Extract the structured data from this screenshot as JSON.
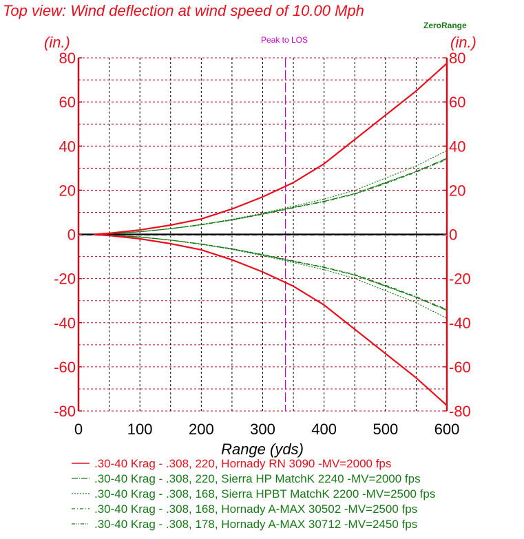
{
  "chart_data": {
    "type": "line",
    "title": "Top view: Wind deflection at wind speed of 10.00 Mph",
    "xlabel": "Range (yds)",
    "ylabel_left": "(in.)",
    "ylabel_right": "(in.)",
    "xlim": [
      0,
      600
    ],
    "ylim": [
      -80,
      80
    ],
    "x_ticks": [
      0,
      100,
      200,
      300,
      400,
      500,
      600
    ],
    "x_tick_labels": [
      "0",
      "100",
      "200",
      "300",
      "400",
      "500",
      "600"
    ],
    "y_ticks": [
      80,
      60,
      40,
      20,
      0,
      -20,
      -40,
      -60,
      -80
    ],
    "y_tick_labels": [
      "80",
      "60",
      "40",
      "20",
      "0",
      "-20",
      "-40",
      "-60",
      "-80"
    ],
    "x_grid_step": 50,
    "y_grid_step": 10,
    "grid": true,
    "annotations": {
      "peak_to_los_label": "Peak to LOS",
      "peak_to_los_x": 337,
      "zero_range_label": "ZeroRange"
    },
    "legend_position": "bottom",
    "x": [
      25,
      50,
      100,
      150,
      200,
      250,
      300,
      350,
      400,
      450,
      500,
      550,
      600
    ],
    "series": [
      {
        "name": ".30-40 Krag - .308, 220, Hornady RN 3090 -MV=2000 fps",
        "color": "#e8101e",
        "dash": "solid",
        "mirrored": true,
        "values": [
          0,
          0.5,
          2,
          4.2,
          7,
          11.5,
          17,
          23.5,
          32,
          43,
          54,
          65,
          77.5
        ]
      },
      {
        "name": ".30-40 Krag - .308, 220, Sierra HP MatchK 2240 -MV=2000 fps",
        "color": "#1a7a1a",
        "dash": "long-dash-dot",
        "mirrored": true,
        "values": [
          0,
          0.3,
          1.2,
          2.6,
          4.4,
          6.6,
          9.3,
          12.3,
          15,
          18.5,
          23.5,
          28.5,
          34.5
        ]
      },
      {
        "name": ".30-40 Krag - .308, 168, Sierra HPBT MatchK 2200 -MV=2500 fps",
        "color": "#1a7a1a",
        "dash": "dotted",
        "mirrored": true,
        "values": [
          0,
          0.3,
          1.2,
          2.6,
          4.5,
          6.8,
          9.6,
          12.8,
          16,
          20,
          25.5,
          31,
          38
        ]
      },
      {
        "name": ".30-40 Krag - .308, 168, Hornady A-MAX 30502 -MV=2500 fps",
        "color": "#1a7a1a",
        "dash": "dash-dot",
        "mirrored": true,
        "values": [
          0,
          0.3,
          1.2,
          2.6,
          4.3,
          6.5,
          9.1,
          12,
          14.8,
          18.2,
          23,
          28.2,
          34
        ]
      },
      {
        "name": ".30-40 Krag - .308, 178, Hornady A-MAX 30712 -MV=2450 fps",
        "color": "#1a7a1a",
        "dash": "dash-dot-dot",
        "mirrored": true,
        "values": [
          0,
          0.3,
          1.2,
          2.6,
          4.4,
          6.6,
          9.2,
          12.2,
          14.9,
          18.4,
          23.3,
          28.4,
          34.3
        ]
      }
    ]
  },
  "colors": {
    "axis": "#c8101c",
    "title": "#e8101e",
    "tick_label_y": "#e8101e",
    "tick_label_x": "#000000",
    "grid_h": "#b0102a",
    "grid_v": "#000000",
    "peak": "#cc00cc",
    "zero_range": "#1a7a1a"
  }
}
